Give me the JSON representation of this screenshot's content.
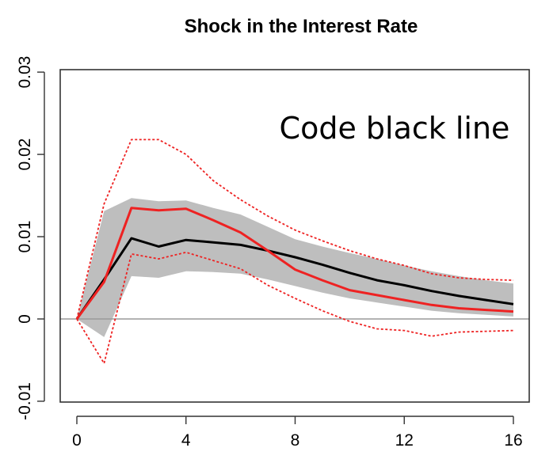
{
  "chart_data": {
    "type": "line",
    "title": "Shock in the Interest Rate",
    "xlabel": "",
    "ylabel": "",
    "xlim": [
      0,
      16.9
    ],
    "ylim": [
      -0.0101,
      0.0303
    ],
    "xticks": [
      0,
      4,
      8,
      12,
      16
    ],
    "xtick_labels": [
      "0",
      "4",
      "8",
      "12",
      "16"
    ],
    "yticks": [
      -0.01,
      0,
      0.01,
      0.02,
      0.03
    ],
    "ytick_labels": [
      "-0.01",
      "0",
      "0.01",
      "0.02",
      "0.03"
    ],
    "grid": false,
    "legend": "none",
    "annotation": "Code black line",
    "zero_line": 0,
    "x": [
      0,
      1,
      2,
      3,
      4,
      5,
      6,
      7,
      8,
      9,
      10,
      11,
      12,
      13,
      14,
      15,
      16
    ],
    "band": {
      "color": "#bebebe",
      "upper": [
        0,
        0.0131,
        0.0147,
        0.0143,
        0.0144,
        0.0135,
        0.0127,
        0.0112,
        0.0097,
        0.0088,
        0.008,
        0.0073,
        0.0065,
        0.0058,
        0.0052,
        0.0047,
        0.0043
      ],
      "lower": [
        0,
        -0.0022,
        0.0052,
        0.005,
        0.0058,
        0.0057,
        0.0055,
        0.0048,
        0.004,
        0.0032,
        0.0025,
        0.002,
        0.0015,
        0.001,
        0.0007,
        0.0005,
        0.0003
      ]
    },
    "series": [
      {
        "color": "#000000",
        "style": "solid",
        "values": [
          0,
          0.0048,
          0.0098,
          0.0088,
          0.0096,
          0.0093,
          0.009,
          0.0083,
          0.0075,
          0.0066,
          0.0056,
          0.0047,
          0.0041,
          0.0034,
          0.0028,
          0.0023,
          0.0018
        ]
      },
      {
        "color": "#ee2222",
        "style": "solid",
        "values": [
          0,
          0.0045,
          0.0135,
          0.0132,
          0.0134,
          0.012,
          0.0105,
          0.0083,
          0.006,
          0.0047,
          0.0035,
          0.0029,
          0.0023,
          0.0017,
          0.0013,
          0.0011,
          0.0009
        ]
      },
      {
        "color": "#ee2222",
        "style": "dotted",
        "values": [
          0,
          0.014,
          0.0218,
          0.0218,
          0.02,
          0.0168,
          0.0145,
          0.0125,
          0.0108,
          0.0095,
          0.0083,
          0.0073,
          0.0065,
          0.0055,
          0.005,
          0.0048,
          0.0047
        ]
      },
      {
        "color": "#ee2222",
        "style": "dotted",
        "values": [
          0,
          -0.0054,
          0.0079,
          0.0073,
          0.0081,
          0.0071,
          0.0061,
          0.0041,
          0.0025,
          0.001,
          -0.0003,
          -0.0012,
          -0.0014,
          -0.0021,
          -0.0016,
          -0.0015,
          -0.0014
        ]
      }
    ]
  }
}
